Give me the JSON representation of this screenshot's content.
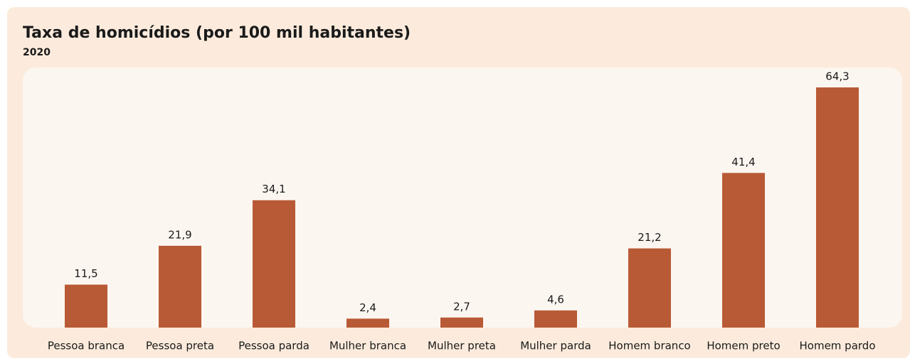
{
  "chart_data": {
    "type": "bar",
    "title": "Taxa de homicídios (por 100 mil habitantes)",
    "subtitle": "2020",
    "categories": [
      "Pessoa branca",
      "Pessoa preta",
      "Pessoa parda",
      "Mulher branca",
      "Mulher preta",
      "Mulher parda",
      "Homem branco",
      "Homem preto",
      "Homem pardo"
    ],
    "values": [
      11.5,
      21.9,
      34.1,
      2.4,
      2.7,
      4.6,
      21.2,
      41.4,
      64.3
    ],
    "value_labels": [
      "11,5",
      "21,9",
      "34,1",
      "2,4",
      "2,7",
      "4,6",
      "21,2",
      "41,4",
      "64,3"
    ],
    "color": "#b85a35"
  }
}
